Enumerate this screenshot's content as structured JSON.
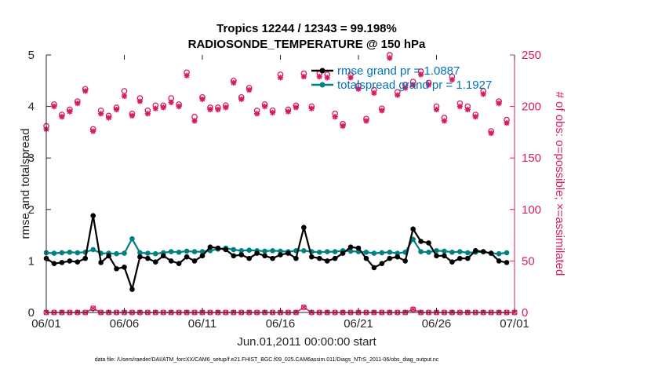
{
  "chart_data": {
    "type": "line",
    "title_line1": "Tropics 12244 / 12343 = 99.198%",
    "title_line2": "RADIOSONDE_TEMPERATURE @ 150 hPa",
    "xlabel": "Jun.01,2011 00:00:00 start",
    "ylabel_left": "rmse and totalspread",
    "ylabel_right": "# of obs: o=possible; ×=assimilated",
    "ylim_left": [
      0,
      5
    ],
    "ylim_right": [
      0,
      250
    ],
    "xlim": [
      0,
      30
    ],
    "x_ticks": [
      0,
      5,
      10,
      15,
      20,
      25,
      30
    ],
    "x_tick_labels": [
      "06/01",
      "06/06",
      "06/11",
      "06/16",
      "06/21",
      "06/26",
      "07/01"
    ],
    "y_ticks_left": [
      "0",
      "1",
      "2",
      "3",
      "4",
      "5"
    ],
    "y_ticks_right": [
      "0",
      "50",
      "100",
      "150",
      "200",
      "250"
    ],
    "colors": {
      "rmse": "#000000",
      "spread": "#008080",
      "obs": "#d81b60",
      "legend_text": "#0072bd"
    },
    "legend": [
      {
        "label": "rmse grand pr = 1.0887"
      },
      {
        "label": "totalspread grand pr = 1.1927"
      }
    ],
    "footer": "data file: /Users/raeder/DAI/ATM_forcXX/CAM6_setup/f.e21.FHIST_BGC.f09_025.CAM6assim.011/Diags_NTrS_2011-06/obs_diag_output.nc",
    "series": [
      {
        "name": "rmse",
        "x": [
          0,
          0.5,
          1,
          1.5,
          2,
          2.5,
          3,
          3.5,
          4,
          4.5,
          5,
          5.5,
          6,
          6.5,
          7,
          7.5,
          8,
          8.5,
          9,
          9.5,
          10,
          10.5,
          11,
          11.5,
          12,
          12.5,
          13,
          13.5,
          14,
          14.5,
          15,
          15.5,
          16,
          16.5,
          17,
          17.5,
          18,
          18.5,
          19,
          19.5,
          20,
          20.5,
          21,
          21.5,
          22,
          22.5,
          23,
          23.5,
          24,
          24.5,
          25,
          25.5,
          26,
          26.5,
          27,
          27.5,
          28,
          28.5,
          29,
          29.5
        ],
        "values": [
          1.05,
          0.95,
          0.97,
          1.0,
          0.98,
          1.05,
          1.88,
          0.97,
          1.1,
          0.85,
          0.88,
          0.45,
          1.08,
          1.05,
          0.98,
          1.1,
          1.0,
          0.95,
          1.08,
          1.0,
          1.1,
          1.27,
          1.25,
          1.22,
          1.1,
          1.12,
          1.05,
          1.15,
          1.1,
          1.05,
          1.12,
          1.15,
          1.05,
          1.65,
          1.08,
          1.05,
          1.0,
          1.05,
          1.15,
          1.27,
          1.25,
          1.05,
          0.87,
          0.95,
          1.05,
          1.08,
          1.0,
          1.62,
          1.38,
          1.35,
          1.1,
          1.1,
          0.98,
          1.05,
          1.05,
          1.2,
          1.18,
          1.15,
          1.0,
          0.97
        ]
      },
      {
        "name": "totalspread",
        "x": [
          0,
          0.5,
          1,
          1.5,
          2,
          2.5,
          3,
          3.5,
          4,
          4.5,
          5,
          5.5,
          6,
          6.5,
          7,
          7.5,
          8,
          8.5,
          9,
          9.5,
          10,
          10.5,
          11,
          11.5,
          12,
          12.5,
          13,
          13.5,
          14,
          14.5,
          15,
          15.5,
          16,
          16.5,
          17,
          17.5,
          18,
          18.5,
          19,
          19.5,
          20,
          20.5,
          21,
          21.5,
          22,
          22.5,
          23,
          23.5,
          24,
          24.5,
          25,
          25.5,
          26,
          26.5,
          27,
          27.5,
          28,
          28.5,
          29,
          29.5
        ],
        "values": [
          1.16,
          1.15,
          1.16,
          1.17,
          1.16,
          1.17,
          1.22,
          1.15,
          1.15,
          1.14,
          1.15,
          1.43,
          1.16,
          1.15,
          1.14,
          1.16,
          1.18,
          1.17,
          1.19,
          1.18,
          1.18,
          1.2,
          1.23,
          1.25,
          1.22,
          1.2,
          1.21,
          1.2,
          1.19,
          1.2,
          1.19,
          1.18,
          1.2,
          1.2,
          1.18,
          1.17,
          1.18,
          1.18,
          1.2,
          1.19,
          1.18,
          1.17,
          1.15,
          1.16,
          1.17,
          1.15,
          1.17,
          1.42,
          1.18,
          1.17,
          1.2,
          1.19,
          1.17,
          1.18,
          1.16,
          1.17,
          1.18,
          1.15,
          1.14,
          1.16
        ]
      },
      {
        "name": "obs_possible",
        "x": [
          0,
          0.5,
          1,
          1.5,
          2,
          2.5,
          3,
          3.5,
          4,
          4.5,
          5,
          5.5,
          6,
          6.5,
          7,
          7.5,
          8,
          8.5,
          9,
          9.5,
          10,
          10.5,
          11,
          11.5,
          12,
          12.5,
          13,
          13.5,
          14,
          14.5,
          15,
          15.5,
          16,
          16.5,
          17,
          17.5,
          18,
          18.5,
          19,
          19.5,
          20,
          20.5,
          21,
          21.5,
          22,
          22.5,
          23,
          23.5,
          24,
          24.5,
          25,
          25.5,
          26,
          26.5,
          27,
          27.5,
          28,
          28.5,
          29,
          29.5
        ],
        "values": [
          181,
          202,
          192,
          197,
          205,
          217,
          178,
          196,
          191,
          199,
          215,
          193,
          208,
          196,
          201,
          201,
          208,
          202,
          233,
          190,
          209,
          199,
          199,
          201,
          225,
          209,
          218,
          196,
          202,
          196,
          231,
          197,
          201,
          232,
          200,
          232,
          231,
          193,
          183,
          231,
          220,
          188,
          216,
          198,
          250,
          214,
          221,
          224,
          234,
          223,
          200,
          189,
          229,
          203,
          200,
          192,
          215,
          176,
          205,
          187
        ]
      },
      {
        "name": "obs_assimilated",
        "x": [
          0,
          0.5,
          1,
          1.5,
          2,
          2.5,
          3,
          3.5,
          4,
          4.5,
          5,
          5.5,
          6,
          6.5,
          7,
          7.5,
          8,
          8.5,
          9,
          9.5,
          10,
          10.5,
          11,
          11.5,
          12,
          12.5,
          13,
          13.5,
          14,
          14.5,
          15,
          15.5,
          16,
          16.5,
          17,
          17.5,
          18,
          18.5,
          19,
          19.5,
          20,
          20.5,
          21,
          21.5,
          22,
          22.5,
          23,
          23.5,
          24,
          24.5,
          25,
          25.5,
          26,
          26.5,
          27,
          27.5,
          28,
          28.5,
          29,
          29.5
        ],
        "values": [
          178,
          200,
          190,
          195,
          203,
          215,
          176,
          193,
          189,
          197,
          210,
          191,
          205,
          193,
          198,
          199,
          204,
          200,
          230,
          186,
          207,
          197,
          197,
          199,
          223,
          207,
          216,
          193,
          200,
          194,
          228,
          195,
          199,
          229,
          198,
          229,
          228,
          190,
          181,
          228,
          217,
          186,
          213,
          196,
          247,
          211,
          218,
          221,
          231,
          221,
          197,
          186,
          226,
          200,
          197,
          190,
          212,
          174,
          203,
          184
        ]
      },
      {
        "name": "obs_zero_line",
        "x": [
          0,
          0.5,
          1,
          1.5,
          2,
          2.5,
          3,
          3.5,
          4,
          4.5,
          5,
          5.5,
          6,
          6.5,
          7,
          7.5,
          8,
          8.5,
          9,
          9.5,
          10,
          10.5,
          11,
          11.5,
          12,
          12.5,
          13,
          13.5,
          14,
          14.5,
          15,
          15.5,
          16,
          16.5,
          17,
          17.5,
          18,
          18.5,
          19,
          19.5,
          20,
          20.5,
          21,
          21.5,
          22,
          22.5,
          23,
          23.5,
          24,
          24.5,
          25,
          25.5,
          26,
          26.5,
          27,
          27.5,
          28,
          28.5,
          29,
          29.5,
          30
        ],
        "values": [
          0,
          0,
          0,
          0,
          0,
          0,
          4,
          0,
          0,
          0,
          0,
          0,
          0,
          0,
          0,
          0,
          0,
          0,
          0,
          0,
          0,
          0,
          0,
          0,
          0,
          0,
          0,
          0,
          0,
          0,
          0,
          0,
          0,
          5,
          0,
          0,
          0,
          0,
          0,
          0,
          0,
          0,
          0,
          0,
          0,
          0,
          0,
          3,
          0,
          0,
          0,
          0,
          0,
          0,
          0,
          0,
          0,
          0,
          0,
          0,
          0
        ]
      }
    ]
  }
}
